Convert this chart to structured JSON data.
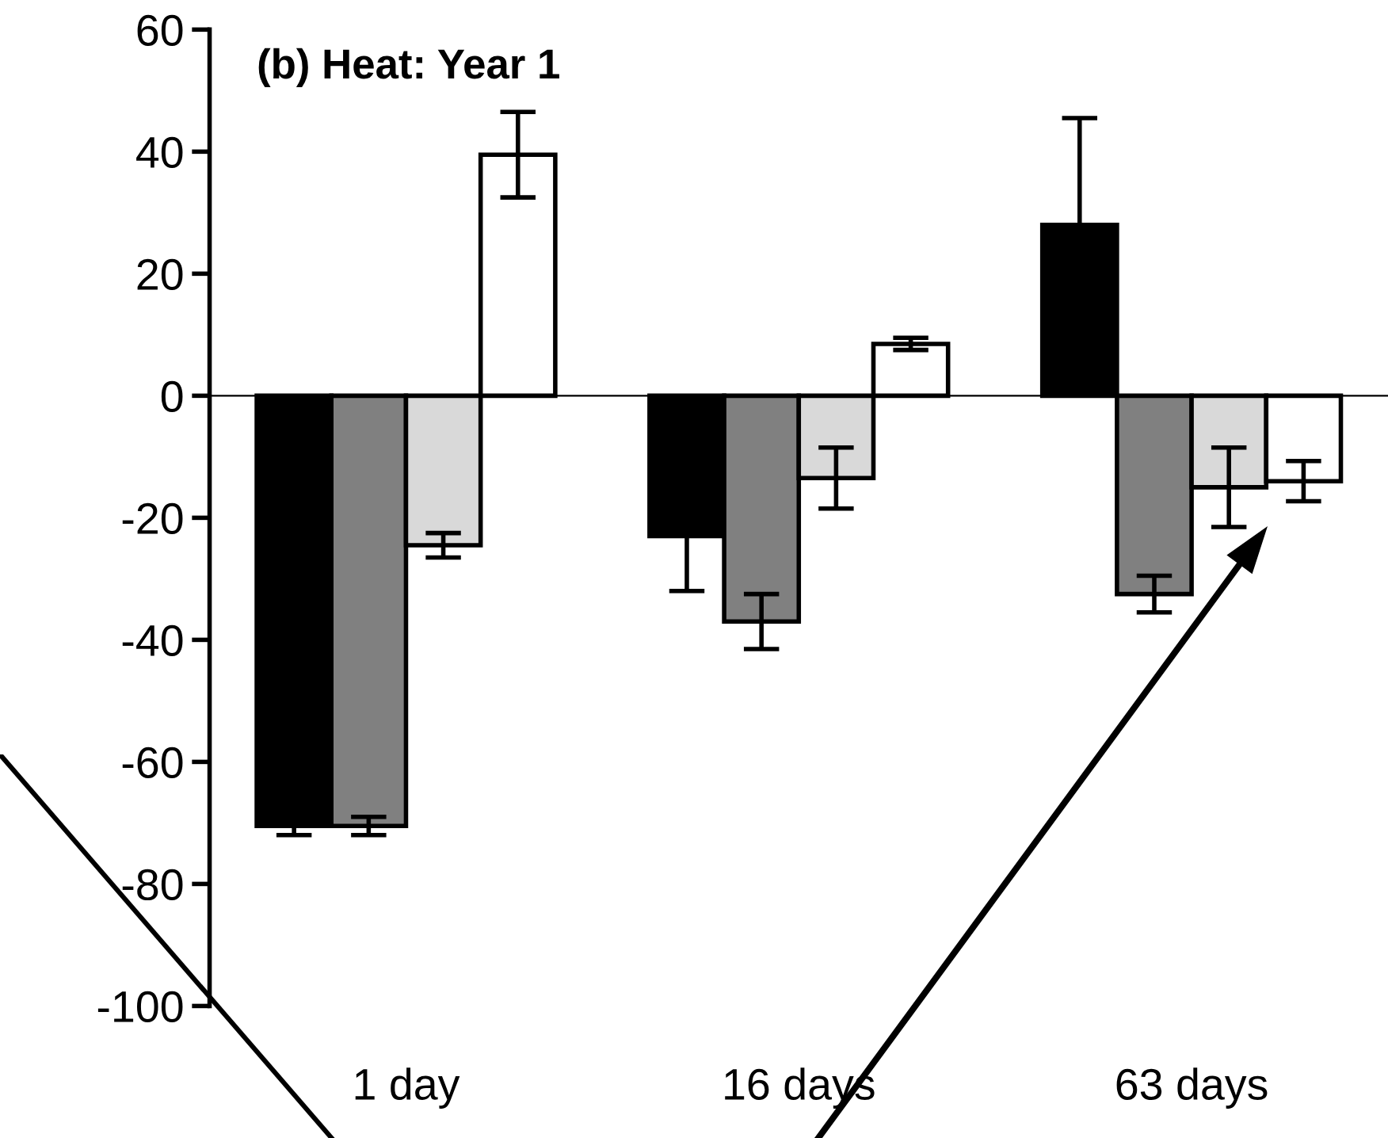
{
  "chart_data": {
    "type": "bar",
    "title": "(b) Heat: Year 1",
    "categories": [
      "1 day",
      "16 days",
      "63 days"
    ],
    "series": [
      {
        "color": "#000000",
        "values": [
          -70.5,
          -23,
          28
        ],
        "errors": [
          1.5,
          9,
          17.5
        ]
      },
      {
        "color": "#808080",
        "values": [
          -70.5,
          -37,
          -32.5
        ],
        "errors": [
          1.5,
          4.5,
          3
        ]
      },
      {
        "color": "#d9d9d9",
        "values": [
          -24.5,
          -13.5,
          -15
        ],
        "errors": [
          2,
          5,
          6.5
        ]
      },
      {
        "color": "#ffffff",
        "values": [
          39.5,
          8.5,
          -14
        ],
        "errors": [
          7,
          1,
          3.3
        ]
      }
    ],
    "ylim": [
      -100,
      60
    ],
    "yticks": [
      -100,
      -80,
      -60,
      -40,
      -20,
      0,
      20,
      40,
      60
    ],
    "legend": false
  }
}
